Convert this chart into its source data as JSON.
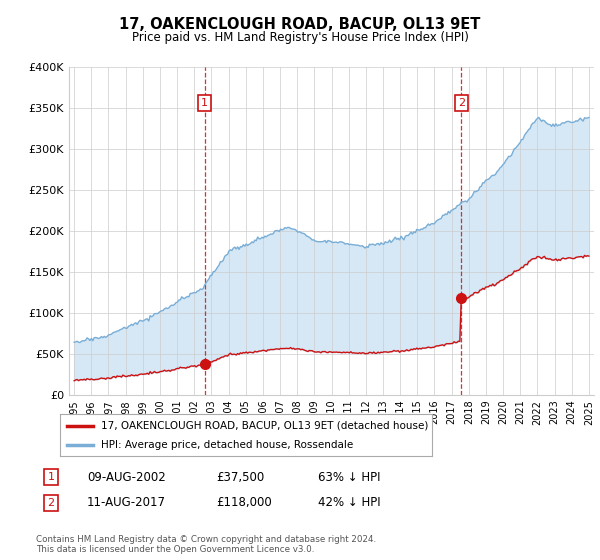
{
  "title": "17, OAKENCLOUGH ROAD, BACUP, OL13 9ET",
  "subtitle": "Price paid vs. HM Land Registry's House Price Index (HPI)",
  "ytick_labels": [
    "£0",
    "£50K",
    "£100K",
    "£150K",
    "£200K",
    "£250K",
    "£300K",
    "£350K",
    "£400K"
  ],
  "yticks": [
    0,
    50000,
    100000,
    150000,
    200000,
    250000,
    300000,
    350000,
    400000
  ],
  "hpi_color": "#7aaed6",
  "hpi_fill_color": "#d6e8f5",
  "price_color": "#cc1111",
  "marker_color": "#cc1111",
  "legend_line1": "17, OAKENCLOUGH ROAD, BACUP, OL13 9ET (detached house)",
  "legend_line2": "HPI: Average price, detached house, Rossendale",
  "table_row1": [
    "1",
    "09-AUG-2002",
    "£37,500",
    "63% ↓ HPI"
  ],
  "table_row2": [
    "2",
    "11-AUG-2017",
    "£118,000",
    "42% ↓ HPI"
  ],
  "footer": "Contains HM Land Registry data © Crown copyright and database right 2024.\nThis data is licensed under the Open Government Licence v3.0.",
  "background_color": "#ffffff",
  "grid_color": "#cccccc"
}
